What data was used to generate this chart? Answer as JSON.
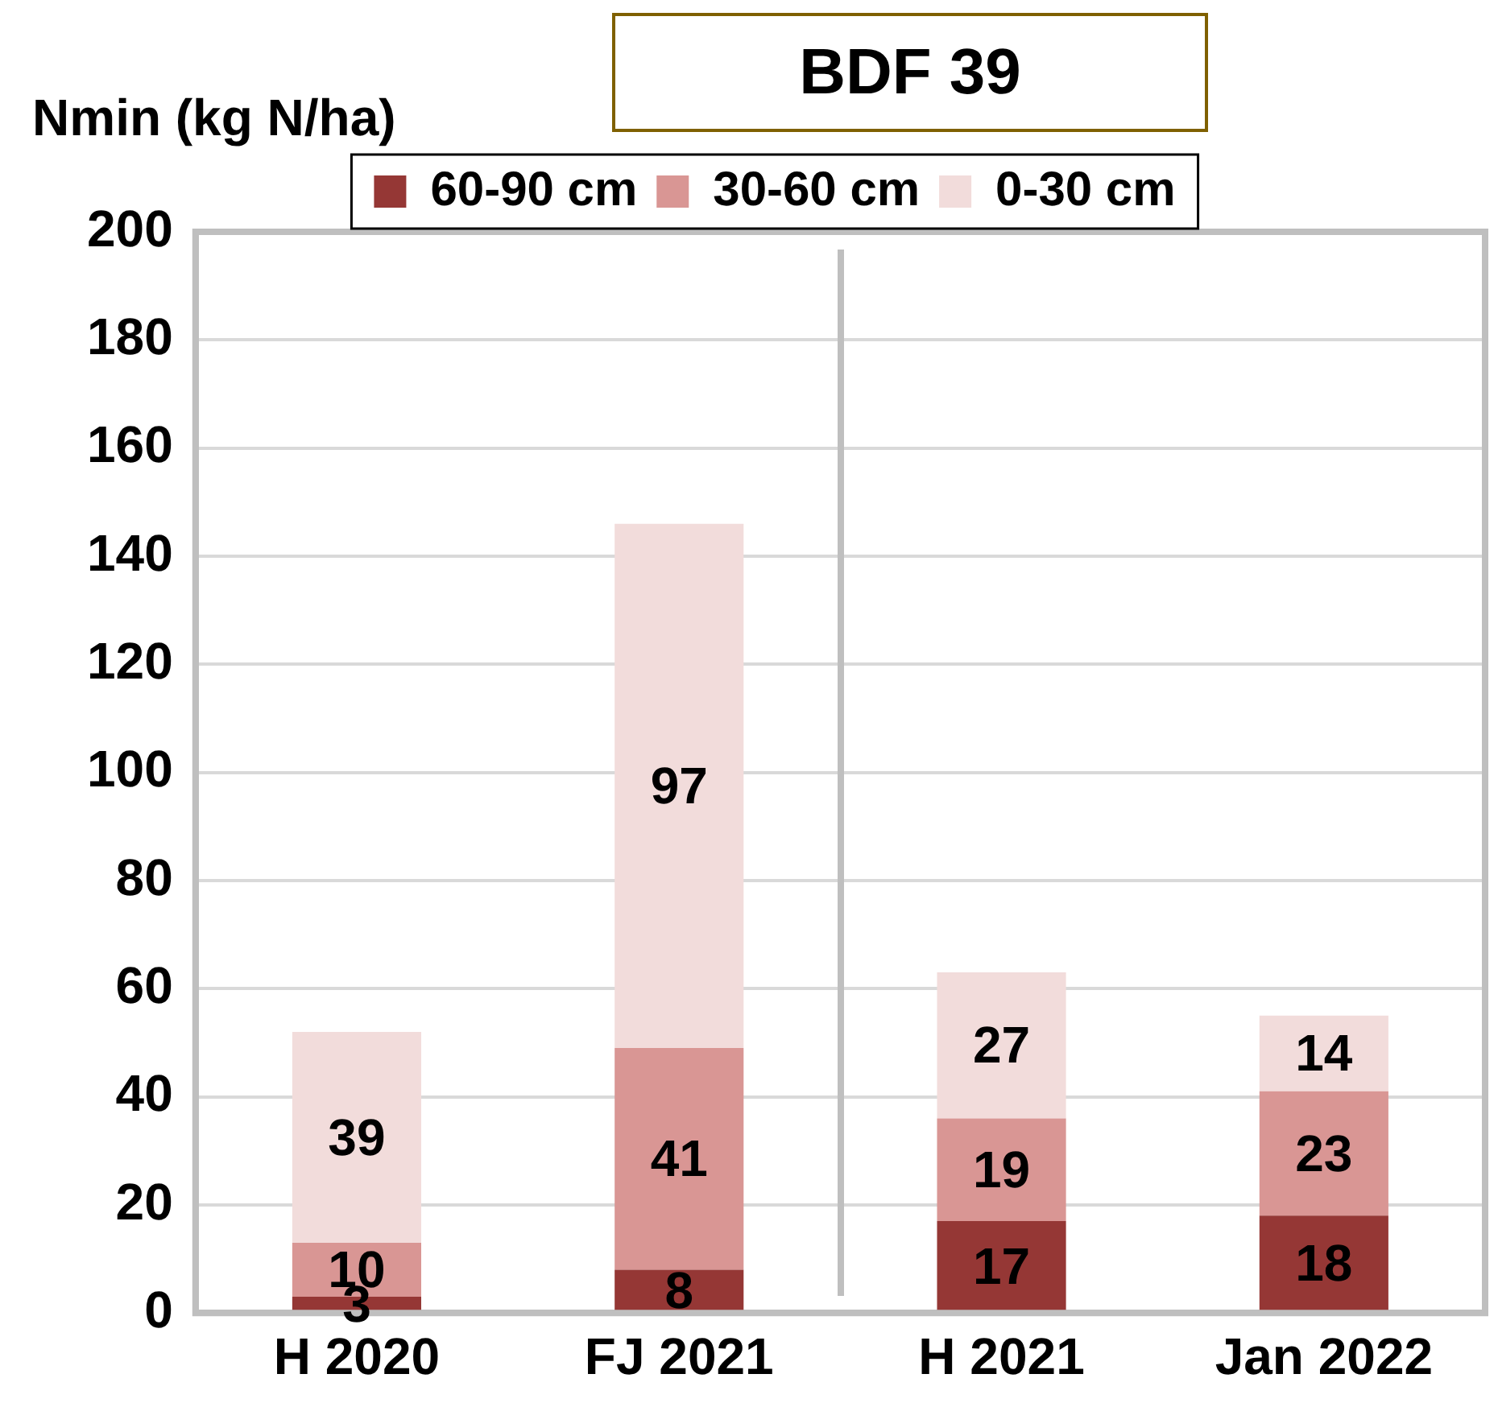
{
  "chart_data": {
    "type": "bar",
    "title": "BDF 39",
    "ylabel": "Nmin (kg N/ha)",
    "categories": [
      "H 2020",
      "FJ 2021",
      "H 2021",
      "Jan 2022"
    ],
    "series": [
      {
        "name": "60-90 cm",
        "color": "#953735",
        "values": [
          3,
          8,
          17,
          18
        ]
      },
      {
        "name": "30-60 cm",
        "color": "#d99694",
        "values": [
          10,
          41,
          19,
          23
        ]
      },
      {
        "name": "0-30 cm",
        "color": "#f2dcdb",
        "values": [
          39,
          97,
          27,
          14
        ]
      }
    ],
    "stacked": true,
    "data_labels": true,
    "ylim": [
      0,
      200
    ],
    "yticks": [
      0,
      20,
      40,
      60,
      80,
      100,
      120,
      140,
      160,
      180,
      200
    ],
    "grid": "y",
    "legend": "top"
  }
}
